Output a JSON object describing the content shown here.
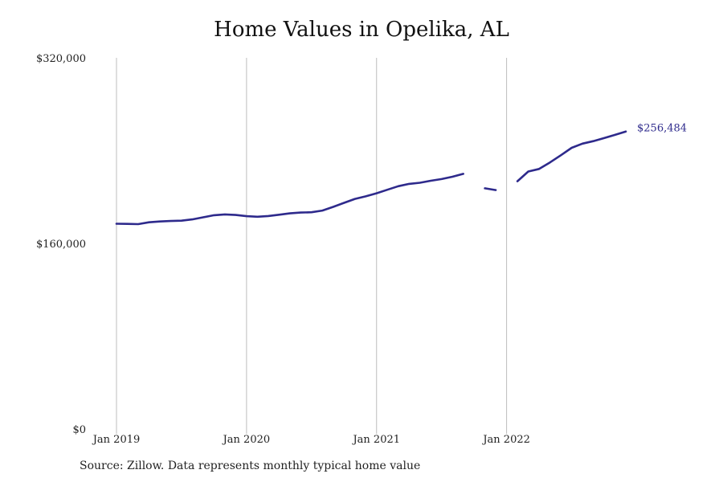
{
  "chart_data": {
    "type": "line",
    "title": "Home Values in Opelika, AL",
    "xlabel": "",
    "ylabel": "",
    "ylim": [
      0,
      320000
    ],
    "xlim": [
      "2019-01",
      "2022-12"
    ],
    "y_ticks": [
      {
        "value": 0,
        "label": "$0"
      },
      {
        "value": 160000,
        "label": "$160,000"
      },
      {
        "value": 320000,
        "label": "$320,000"
      }
    ],
    "x_ticks": [
      {
        "value": "2019-01",
        "label": "Jan 2019"
      },
      {
        "value": "2020-01",
        "label": "Jan 2020"
      },
      {
        "value": "2021-01",
        "label": "Jan 2021"
      },
      {
        "value": "2022-01",
        "label": "Jan 2022"
      }
    ],
    "grid": "vertical",
    "series": [
      {
        "line_color": "#2e2a8c",
        "x": [
          "2019-01",
          "2019-02",
          "2019-03",
          "2019-04",
          "2019-05",
          "2019-06",
          "2019-07",
          "2019-08",
          "2019-09",
          "2019-10",
          "2019-11",
          "2019-12",
          "2020-01",
          "2020-02",
          "2020-03",
          "2020-04",
          "2020-05",
          "2020-06",
          "2020-07",
          "2020-08",
          "2020-09",
          "2020-10",
          "2020-11",
          "2020-12",
          "2021-01",
          "2021-02",
          "2021-03",
          "2021-04",
          "2021-05",
          "2021-06",
          "2021-07",
          "2021-08",
          "2021-09",
          "2021-10",
          "2021-11",
          "2021-12",
          "2022-01",
          "2022-02",
          "2022-03",
          "2022-04",
          "2022-05",
          "2022-06",
          "2022-07",
          "2022-08",
          "2022-09",
          "2022-10",
          "2022-11",
          "2022-12"
        ],
        "y": [
          177000,
          176800,
          176600,
          178200,
          178900,
          179300,
          179600,
          180700,
          182500,
          184300,
          185000,
          184500,
          183500,
          183000,
          183600,
          184700,
          185900,
          186600,
          186900,
          188300,
          191500,
          195000,
          198400,
          200600,
          203200,
          206300,
          209300,
          211300,
          212300,
          214000,
          215500,
          217500,
          220000,
          null,
          207500,
          206000,
          null,
          213600,
          222000,
          224200,
          229800,
          236000,
          242400,
          246000,
          248200,
          250800,
          253600,
          256484
        ]
      }
    ],
    "annotations": [
      {
        "x": "2022-12",
        "value": 256484,
        "label": "$256,484"
      }
    ],
    "source": "Source: Zillow. Data represents monthly typical home value"
  }
}
